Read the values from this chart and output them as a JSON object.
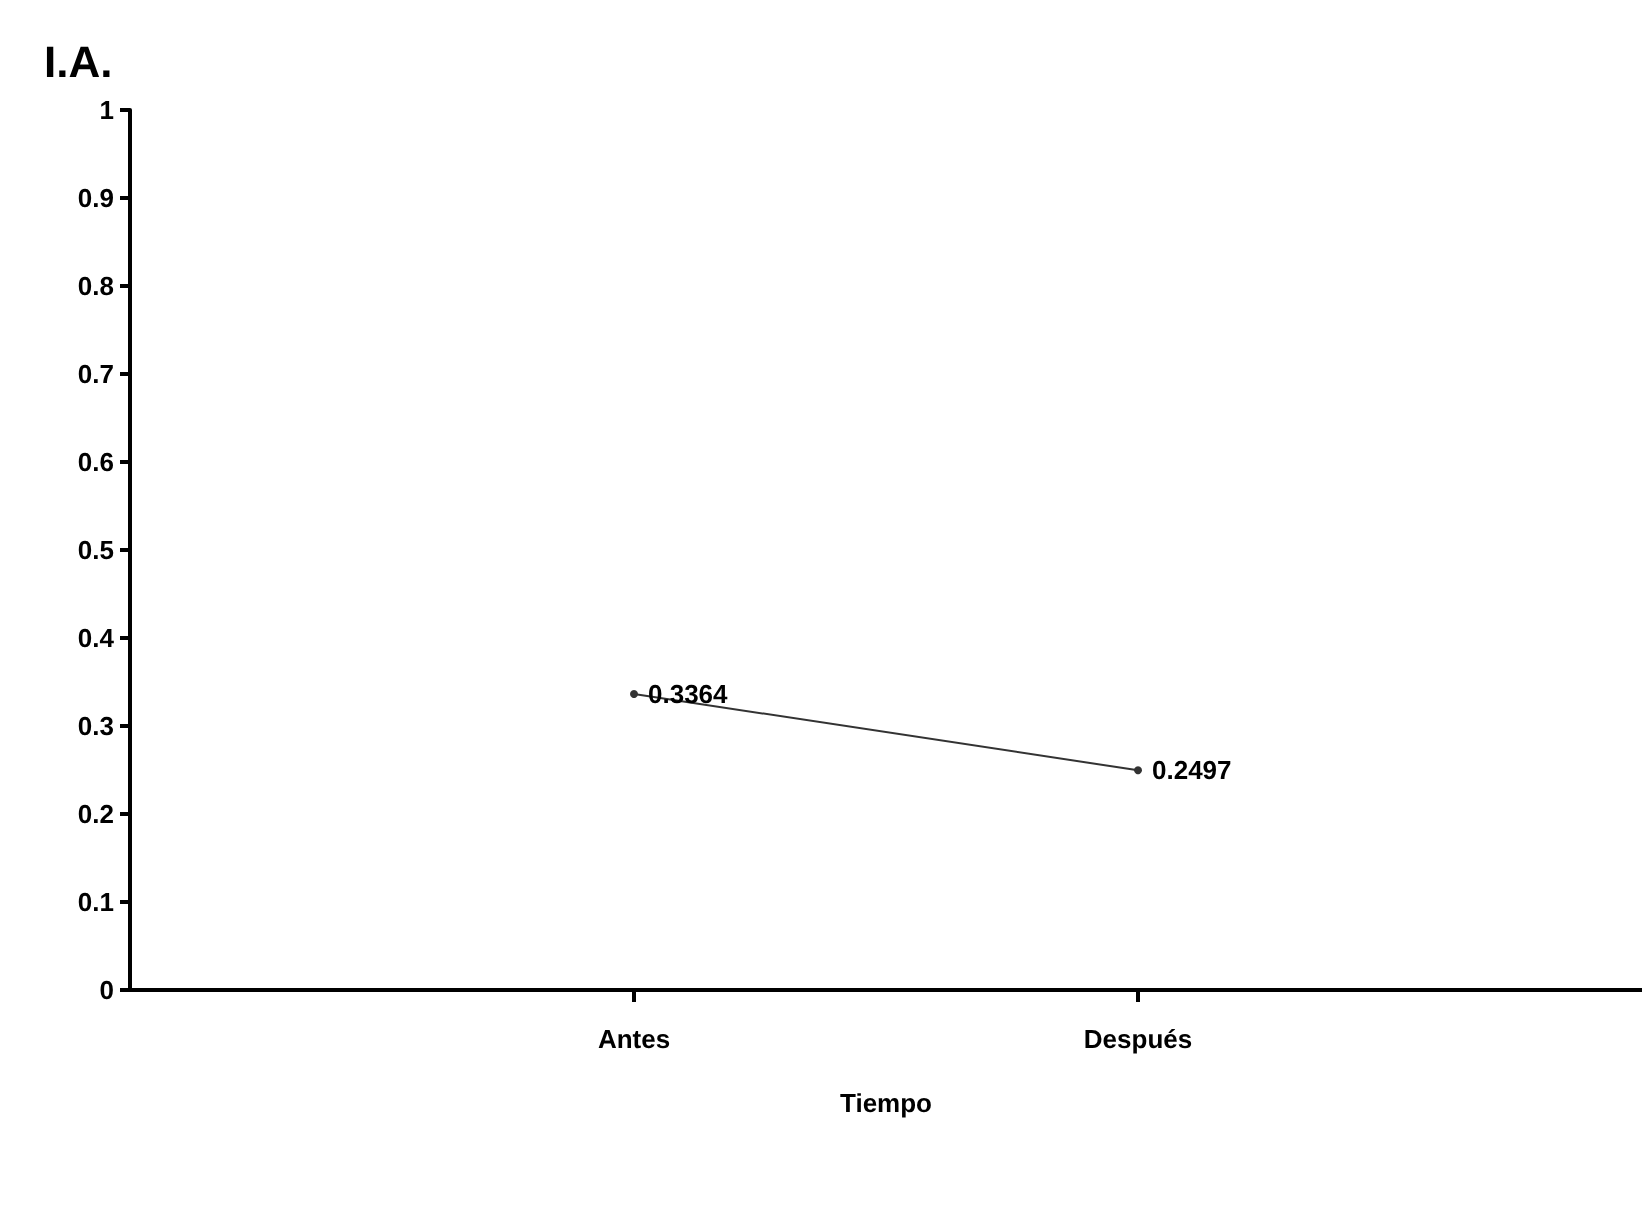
{
  "chart_data": {
    "type": "line",
    "ylabel": "I.A.",
    "xlabel": "Tiempo",
    "categories": [
      "Antes",
      "Después"
    ],
    "series": [
      {
        "color": "#333333",
        "values": [
          0.3364,
          0.2497
        ]
      }
    ],
    "ylim": [
      0,
      1
    ],
    "yticks": [
      0,
      0.1,
      0.2,
      0.3,
      0.4,
      0.5,
      0.6,
      0.7,
      0.8,
      0.9,
      1
    ],
    "data_labels": true,
    "marker": "circle",
    "line_style": "solid",
    "grid": false
  }
}
